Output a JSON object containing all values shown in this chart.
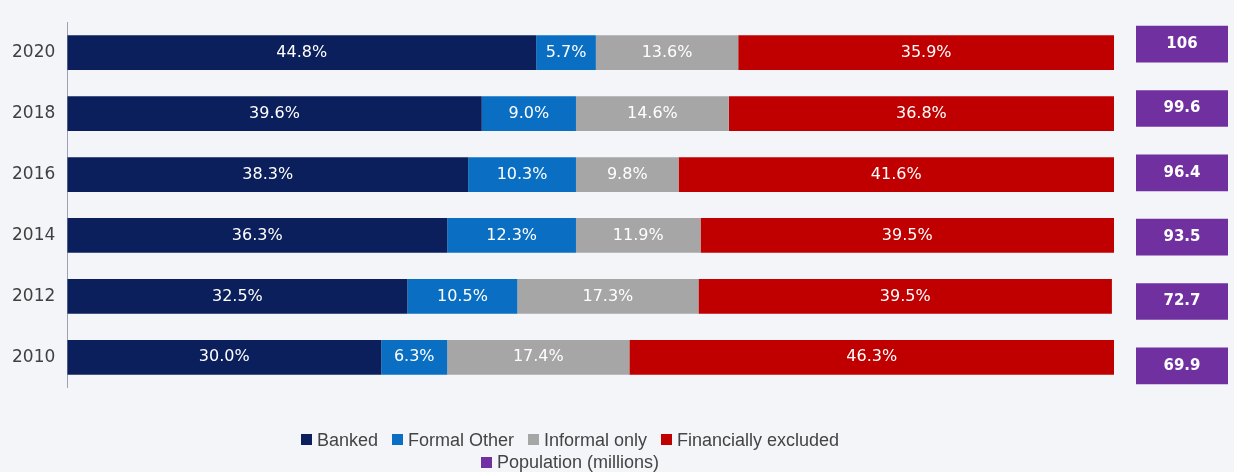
{
  "chart_data": [
    {
      "type": "bar",
      "orientation": "horizontal",
      "stacked": true,
      "categories": [
        "2020",
        "2018",
        "2016",
        "2014",
        "2012",
        "2010"
      ],
      "xlim": [
        0,
        100
      ],
      "tick_labels": "y",
      "grid": false,
      "legend": "bottom",
      "series": [
        {
          "name": "Banked",
          "color": "#0b1f5c",
          "values": [
            44.8,
            39.6,
            38.3,
            36.3,
            32.5,
            30.0
          ],
          "value_labels": [
            "44.8%",
            "39.6%",
            "38.3%",
            "36.3%",
            "32.5%",
            "30.0%"
          ]
        },
        {
          "name": "Formal Other",
          "color": "#0a6fc2",
          "values": [
            5.7,
            9.0,
            10.3,
            12.3,
            10.5,
            6.3
          ],
          "value_labels": [
            "5.7%",
            "9.0%",
            "10.3%",
            "12.3%",
            "10.5%",
            "6.3%"
          ]
        },
        {
          "name": "Informal only",
          "color": "#a6a6a6",
          "values": [
            13.6,
            14.6,
            9.8,
            11.9,
            17.3,
            17.4
          ],
          "value_labels": [
            "13.6%",
            "14.6%",
            "9.8%",
            "11.9%",
            "17.3%",
            "17.4%"
          ]
        },
        {
          "name": "Financially excluded",
          "color": "#c00000",
          "values": [
            35.9,
            36.8,
            41.6,
            39.5,
            39.5,
            46.3
          ],
          "value_labels": [
            "35.9%",
            "36.8%",
            "41.6%",
            "39.5%",
            "39.5%",
            "46.3%"
          ]
        }
      ]
    },
    {
      "type": "other",
      "categories": [
        null,
        null,
        null,
        null,
        null,
        null
      ],
      "data_labels": true,
      "legend": "bottom",
      "series": [
        {
          "name": "Population (millions)",
          "color": "#7030a0",
          "values": [
            106,
            99.6,
            96.4,
            93.5,
            72.7,
            69.9
          ]
        }
      ]
    }
  ]
}
